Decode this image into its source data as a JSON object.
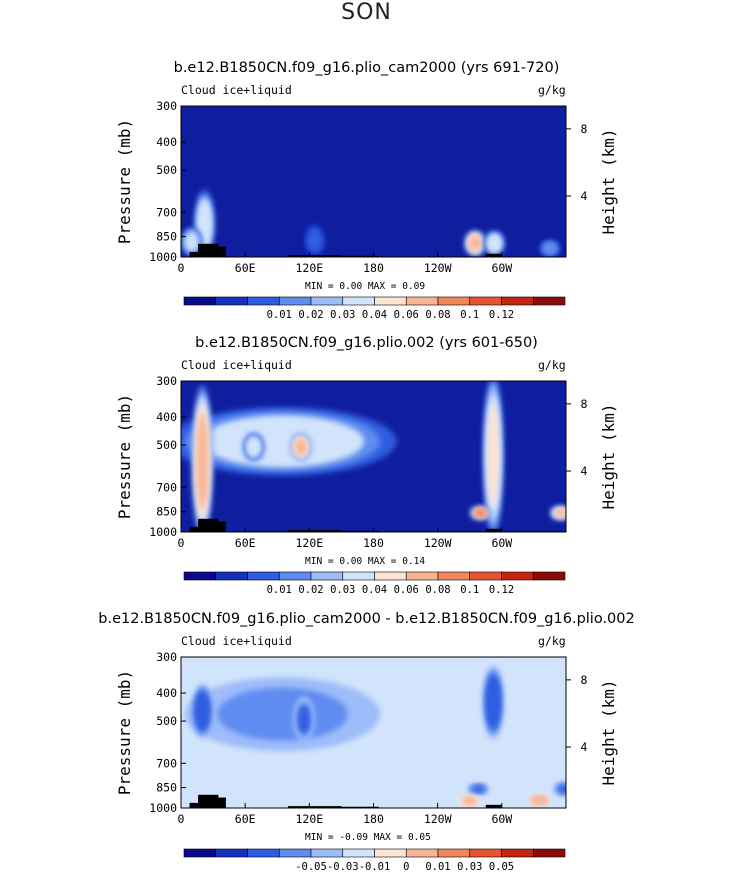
{
  "figure_title": "SON",
  "chart_data": [
    {
      "type": "heatmap",
      "title": "b.e12.B1850CN.f09_g16.plio_cam2000 (yrs 691-720)",
      "left_label": "Cloud ice+liquid",
      "units": "g/kg",
      "ylabel": "Pressure (mb)",
      "ylabel_right": "Height (km)",
      "x_ticks": [
        "0",
        "60E",
        "120E",
        "180",
        "120W",
        "60W"
      ],
      "y_ticks": [
        "300",
        "400",
        "500",
        "700",
        "850",
        "1000"
      ],
      "height_ticks": [
        "8",
        "4"
      ],
      "min_text": "MIN =    0.00   MAX =    0.09",
      "colorbar_labels": [
        "0.01",
        "0.02",
        "0.03",
        "0.04",
        "0.06",
        "0.08",
        "0.1",
        "0.12"
      ],
      "colorbar_colors": [
        "#0a0a8c",
        "#1531c0",
        "#2d5de0",
        "#5f8cf0",
        "#9dbcfa",
        "#d2e4fb",
        "#fde3d4",
        "#f8b596",
        "#f2875e",
        "#e45530",
        "#c42612",
        "#8c0a08"
      ],
      "background_color": "#0f1e9e",
      "features": [
        {
          "name": "sharp cloud column near 20E",
          "lon": 22,
          "p_top": 600,
          "p_bot": 980,
          "value": 0.06
        },
        {
          "name": "low cloud near 10E",
          "lon": 10,
          "p_top": 800,
          "p_bot": 980,
          "value": 0.05
        },
        {
          "name": "weak plumes 100E-150E",
          "lon": 125,
          "p_top": 780,
          "p_bot": 980,
          "value": 0.02
        },
        {
          "name": "stratocumulus east Pacific",
          "lon": 275,
          "p_top": 820,
          "p_bot": 980,
          "value": 0.09
        },
        {
          "name": "Andes plume",
          "lon": 293,
          "p_top": 820,
          "p_bot": 980,
          "value": 0.06
        },
        {
          "name": "Atlantic low cloud",
          "lon": 345,
          "p_top": 880,
          "p_bot": 990,
          "value": 0.03
        }
      ]
    },
    {
      "type": "heatmap",
      "title": "b.e12.B1850CN.f09_g16.plio.002 (yrs 601-650)",
      "left_label": "Cloud ice+liquid",
      "units": "g/kg",
      "ylabel": "Pressure (mb)",
      "ylabel_right": "Height (km)",
      "x_ticks": [
        "0",
        "60E",
        "120E",
        "180",
        "120W",
        "60W"
      ],
      "y_ticks": [
        "300",
        "400",
        "500",
        "700",
        "850",
        "1000"
      ],
      "height_ticks": [
        "8",
        "4"
      ],
      "min_text": "MIN =    0.00   MAX =    0.14",
      "colorbar_labels": [
        "0.01",
        "0.02",
        "0.03",
        "0.04",
        "0.06",
        "0.08",
        "0.1",
        "0.12"
      ],
      "colorbar_colors": [
        "#0a0a8c",
        "#1531c0",
        "#2d5de0",
        "#5f8cf0",
        "#9dbcfa",
        "#d2e4fb",
        "#fde3d4",
        "#f8b596",
        "#f2875e",
        "#e45530",
        "#c42612",
        "#8c0a08"
      ],
      "background_color": "#0f1e9e",
      "features": [
        {
          "name": "upper cloud band 0-190E",
          "lon": 95,
          "p_top": 380,
          "p_bot": 620,
          "value": 0.06
        },
        {
          "name": "African deep column",
          "lon": 20,
          "p_top": 330,
          "p_bot": 980,
          "value": 0.1
        },
        {
          "name": "Maritime continent core",
          "lon": 112,
          "p_top": 460,
          "p_bot": 560,
          "value": 0.1
        },
        {
          "name": "Indian Ocean core",
          "lon": 68,
          "p_top": 460,
          "p_bot": 560,
          "value": 0.06
        },
        {
          "name": "South American deep column",
          "lon": 292,
          "p_top": 300,
          "p_bot": 980,
          "value": 0.08
        },
        {
          "name": "East Pacific stratocumulus",
          "lon": 280,
          "p_top": 820,
          "p_bot": 900,
          "value": 0.12
        },
        {
          "name": "Atlantic stratocumulus",
          "lon": 355,
          "p_top": 820,
          "p_bot": 900,
          "value": 0.1
        }
      ]
    },
    {
      "type": "heatmap",
      "title": "b.e12.B1850CN.f09_g16.plio_cam2000 - b.e12.B1850CN.f09_g16.plio.002",
      "left_label": "Cloud ice+liquid",
      "units": "g/kg",
      "ylabel": "Pressure (mb)",
      "ylabel_right": "Height (km)",
      "x_ticks": [
        "0",
        "60E",
        "120E",
        "180",
        "120W",
        "60W"
      ],
      "y_ticks": [
        "300",
        "400",
        "500",
        "700",
        "850",
        "1000"
      ],
      "height_ticks": [
        "8",
        "4"
      ],
      "min_text": "MIN =   -0.09   MAX =    0.05",
      "colorbar_labels": [
        "-0.05",
        "-0.03",
        "-0.01",
        "0",
        "0.01",
        "0.03",
        "0.05"
      ],
      "colorbar_colors": [
        "#0a0a8c",
        "#1531c0",
        "#2d5de0",
        "#5f8cf0",
        "#9dbcfa",
        "#d2e4fb",
        "#fde3d4",
        "#f8b596",
        "#f2875e",
        "#e45530",
        "#c42612",
        "#8c0a08"
      ],
      "background_color": "#d2e4fb",
      "features": [
        {
          "name": "upper negative band 0-190E",
          "lon": 95,
          "p_top": 350,
          "p_bot": 640,
          "value": -0.03
        },
        {
          "name": "African negative core",
          "lon": 20,
          "p_top": 380,
          "p_bot": 560,
          "value": -0.07
        },
        {
          "name": "Maritime negative core",
          "lon": 115,
          "p_top": 420,
          "p_bot": 580,
          "value": -0.05
        },
        {
          "name": "South American negative core",
          "lon": 292,
          "p_top": 330,
          "p_bot": 560,
          "value": -0.08
        },
        {
          "name": "East Pacific negative",
          "lon": 278,
          "p_top": 830,
          "p_bot": 890,
          "value": -0.06
        },
        {
          "name": "Atlantic negative",
          "lon": 358,
          "p_top": 820,
          "p_bot": 900,
          "value": -0.05
        },
        {
          "name": "near-surface positive East Pacific",
          "lon": 270,
          "p_top": 920,
          "p_bot": 970,
          "value": 0.02
        },
        {
          "name": "near-surface positive Atlantic",
          "lon": 335,
          "p_top": 920,
          "p_bot": 960,
          "value": 0.03
        }
      ]
    }
  ]
}
